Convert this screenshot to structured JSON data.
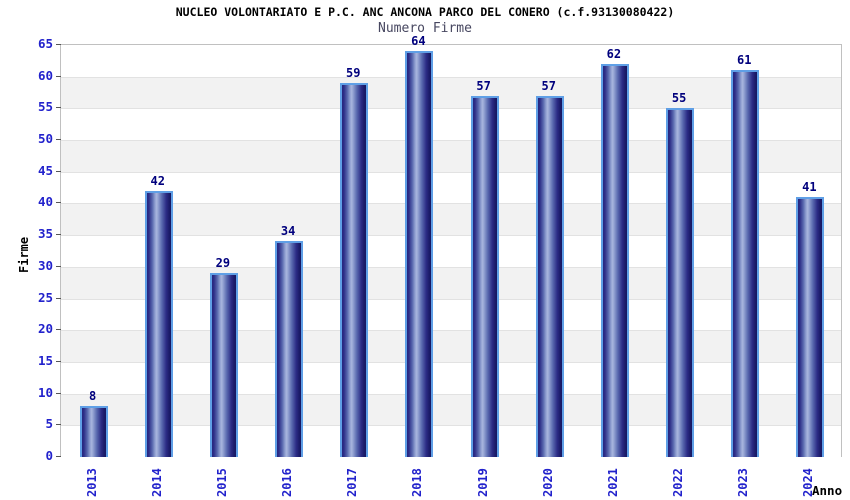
{
  "header": {
    "title": "NUCLEO VOLONTARIATO E P.C. ANC ANCONA PARCO DEL CONERO (c.f.93130080422)",
    "subtitle": "Numero Firme"
  },
  "chart_data": {
    "type": "bar",
    "title": "NUCLEO VOLONTARIATO E P.C. ANC ANCONA PARCO DEL CONERO (c.f.93130080422)",
    "subtitle": "Numero Firme",
    "xlabel": "Anno",
    "ylabel": "Firme",
    "categories": [
      "2013",
      "2014",
      "2015",
      "2016",
      "2017",
      "2018",
      "2019",
      "2020",
      "2021",
      "2022",
      "2023",
      "2024"
    ],
    "values": [
      8,
      42,
      29,
      34,
      59,
      64,
      57,
      57,
      62,
      55,
      61,
      41
    ],
    "ylim": [
      0,
      65
    ],
    "ytick_step": 5,
    "yticks": [
      0,
      5,
      10,
      15,
      20,
      25,
      30,
      35,
      40,
      45,
      50,
      55,
      60,
      65
    ],
    "grid": "horizontal-alternating-bands",
    "legend": "none",
    "colors": {
      "bar_dark": "#22227a",
      "bar_highlight": "#a9b6de",
      "bar_border": "#5f9fe6",
      "value_label": "#00007d",
      "tick_label": "#2222cc",
      "subtitle": "#474760",
      "band_gray": "#f2f2f2",
      "band_white": "#ffffff",
      "gridline": "#e2e2e2",
      "plot_border": "#c0c0c0"
    }
  }
}
